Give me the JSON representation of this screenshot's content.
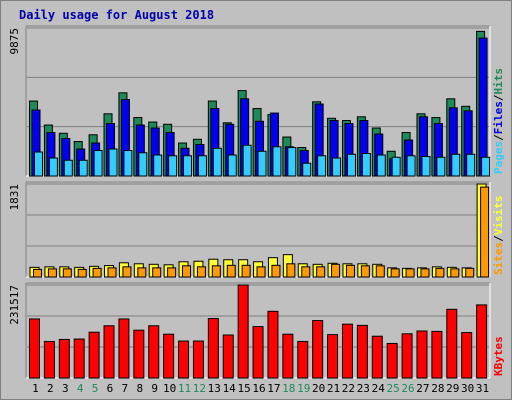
{
  "chart_data": {
    "type": "bar",
    "title": "Daily usage for August 2018",
    "categories": [
      "1",
      "2",
      "3",
      "4",
      "5",
      "6",
      "7",
      "8",
      "9",
      "10",
      "11",
      "12",
      "13",
      "14",
      "15",
      "16",
      "17",
      "18",
      "19",
      "20",
      "21",
      "22",
      "23",
      "24",
      "25",
      "26",
      "27",
      "28",
      "29",
      "30",
      "31"
    ],
    "weekend_days": [
      "4",
      "5",
      "11",
      "12",
      "18",
      "19",
      "25",
      "26"
    ],
    "panels": [
      {
        "id": "top",
        "ymax_label": "9875",
        "ymax": 9875,
        "right_label": [
          "Pages",
          "/",
          "Files",
          "/",
          "Hits"
        ],
        "series": [
          {
            "name": "Hits",
            "color": "#1e8a5a",
            "values": [
              5000,
              3400,
              2850,
              2300,
              2750,
              4150,
              5550,
              3900,
              3600,
              3450,
              2200,
              2450,
              5000,
              3550,
              5700,
              4500,
              4100,
              2600,
              1900,
              4950,
              3850,
              3700,
              3950,
              3200,
              1650,
              2900,
              4150,
              3900,
              5150,
              4650,
              9650
            ]
          },
          {
            "name": "Files",
            "color": "#0000ee",
            "values": [
              4400,
              2900,
              2500,
              1800,
              2200,
              3500,
              5100,
              3400,
              3200,
              2900,
              1850,
              2100,
              4500,
              3450,
              5150,
              3650,
              4200,
              1950,
              1700,
              4800,
              3700,
              3500,
              3700,
              2800,
              1150,
              2400,
              3950,
              3500,
              4550,
              4350,
              9200
            ]
          },
          {
            "name": "Pages",
            "color": "#33ccff",
            "values": [
              1600,
              1200,
              1050,
              1050,
              1700,
              1800,
              1700,
              1550,
              1400,
              1350,
              1350,
              1350,
              1850,
              1400,
              2050,
              1650,
              1950,
              1900,
              850,
              1350,
              1200,
              1450,
              1500,
              1400,
              1250,
              1350,
              1300,
              1250,
              1450,
              1450,
              1250
            ]
          }
        ]
      },
      {
        "id": "middle",
        "ymax_label": "1831",
        "ymax": 1831,
        "right_label": [
          "Sites",
          "/",
          "Visits"
        ],
        "series": [
          {
            "name": "Visits",
            "color": "#ffff33",
            "values": [
              190,
              200,
              200,
              190,
              210,
              225,
              280,
              260,
              250,
              240,
              300,
              310,
              350,
              340,
              340,
              300,
              380,
              440,
              260,
              250,
              270,
              260,
              260,
              250,
              180,
              170,
              180,
              200,
              190,
              180,
              1831
            ]
          },
          {
            "name": "Sites",
            "color": "#ff9900",
            "values": [
              150,
              160,
              160,
              150,
              170,
              180,
              200,
              180,
              180,
              180,
              220,
              200,
              220,
              230,
              230,
              200,
              230,
              260,
              200,
              200,
              250,
              230,
              220,
              220,
              160,
              160,
              160,
              170,
              160,
              170,
              1770
            ]
          }
        ]
      },
      {
        "id": "bottom",
        "ymax_label": "231517",
        "ymax": 231517,
        "right_label": [
          "KBytes"
        ],
        "series": [
          {
            "name": "KBytes",
            "color": "#ff0000",
            "values": [
              147000,
              91000,
              96000,
              97000,
              114000,
              130000,
              147000,
              119000,
              130000,
              109000,
              92000,
              92000,
              148000,
              107000,
              231517,
              128000,
              166000,
              109000,
              91000,
              143000,
              108000,
              134000,
              131000,
              104000,
              86000,
              110000,
              117000,
              116000,
              171000,
              113000,
              182000
            ]
          }
        ]
      }
    ]
  }
}
